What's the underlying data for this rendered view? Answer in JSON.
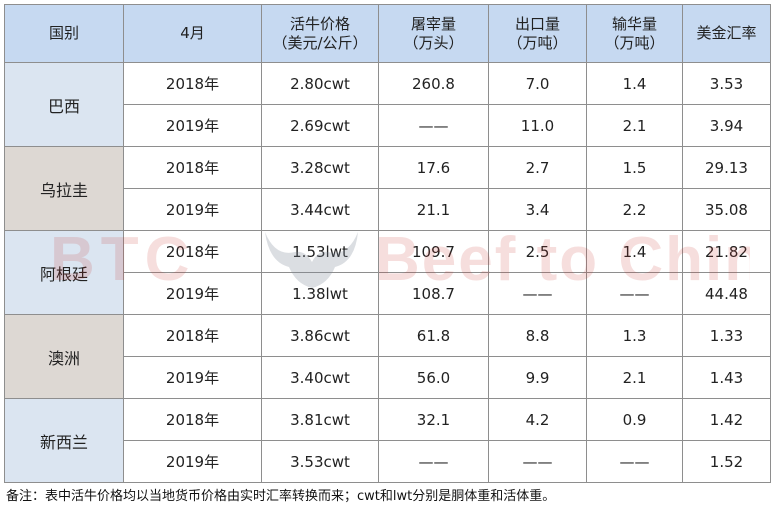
{
  "headers": [
    {
      "lines": [
        "国别"
      ]
    },
    {
      "lines": [
        "4月"
      ]
    },
    {
      "lines": [
        "活牛价格",
        "（美元/公斤）"
      ]
    },
    {
      "lines": [
        "屠宰量",
        "（万头）"
      ]
    },
    {
      "lines": [
        "出口量",
        "（万吨）"
      ]
    },
    {
      "lines": [
        "输华量",
        "（万吨）"
      ]
    },
    {
      "lines": [
        "美金汇率"
      ]
    }
  ],
  "groups": [
    {
      "country": "巴西",
      "rows": [
        {
          "year": "2018年",
          "price": "2.80cwt",
          "slaughter": "260.8",
          "export": "7.0",
          "to_china": "1.4",
          "rate": "3.53"
        },
        {
          "year": "2019年",
          "price": "2.69cwt",
          "slaughter": "——",
          "export": "11.0",
          "to_china": "2.1",
          "rate": "3.94"
        }
      ]
    },
    {
      "country": "乌拉圭",
      "rows": [
        {
          "year": "2018年",
          "price": "3.28cwt",
          "slaughter": "17.6",
          "export": "2.7",
          "to_china": "1.5",
          "rate": "29.13"
        },
        {
          "year": "2019年",
          "price": "3.44cwt",
          "slaughter": "21.1",
          "export": "3.4",
          "to_china": "2.2",
          "rate": "35.08"
        }
      ]
    },
    {
      "country": "阿根廷",
      "rows": [
        {
          "year": "2018年",
          "price": "1.53lwt",
          "slaughter": "109.7",
          "export": "2.5",
          "to_china": "1.4",
          "rate": "21.82"
        },
        {
          "year": "2019年",
          "price": "1.38lwt",
          "slaughter": "108.7",
          "export": "——",
          "to_china": "——",
          "rate": "44.48"
        }
      ]
    },
    {
      "country": "澳洲",
      "rows": [
        {
          "year": "2018年",
          "price": "3.86cwt",
          "slaughter": "61.8",
          "export": "8.8",
          "to_china": "1.3",
          "rate": "1.33"
        },
        {
          "year": "2019年",
          "price": "3.40cwt",
          "slaughter": "56.0",
          "export": "9.9",
          "to_china": "2.1",
          "rate": "1.43"
        }
      ]
    },
    {
      "country": "新西兰",
      "rows": [
        {
          "year": "2018年",
          "price": "3.81cwt",
          "slaughter": "32.1",
          "export": "4.2",
          "to_china": "0.9",
          "rate": "1.42"
        },
        {
          "year": "2019年",
          "price": "3.53cwt",
          "slaughter": "——",
          "export": "——",
          "to_china": "——",
          "rate": "1.52"
        }
      ]
    }
  ],
  "watermark": {
    "left": "BTC",
    "right": "Beef to China",
    "color": "#c9302c"
  },
  "note": "备注：表中活牛价格均以当地货币价格由实时汇率转换而来；cwt和lwt分别是胴体重和活体重。",
  "colors": {
    "header_bg": "#c6d9f1",
    "country_odd_bg": "#dbe5f1",
    "country_even_bg": "#ddd8d3",
    "border": "#8e8e8e"
  }
}
